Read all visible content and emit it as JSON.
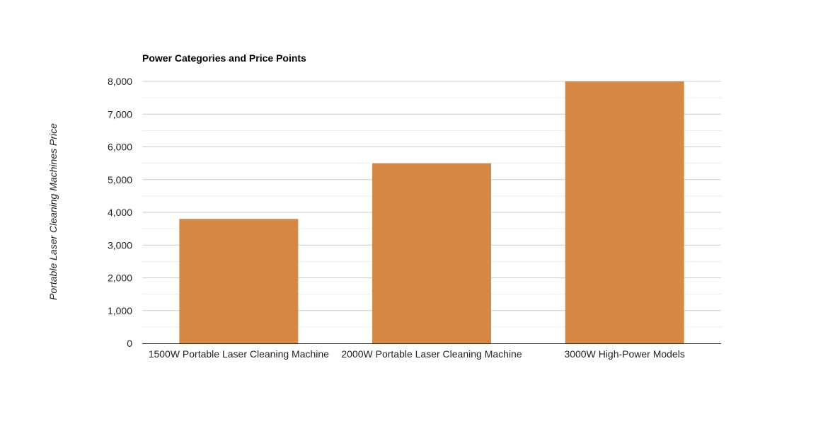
{
  "chart_data": {
    "type": "bar",
    "title": "Power Categories and Price Points",
    "xlabel": "",
    "ylabel": "Portable Laser Cleaning Machines Price",
    "categories": [
      "1500W Portable Laser Cleaning Machine",
      "2000W Portable Laser Cleaning Machine",
      "3000W High-Power Models"
    ],
    "values": [
      3800,
      5500,
      8000
    ],
    "ylim": [
      0,
      8000
    ],
    "yticks": [
      0,
      1000,
      2000,
      3000,
      4000,
      5000,
      6000,
      7000,
      8000
    ],
    "ytick_labels": [
      "0",
      "1,000",
      "2,000",
      "3,000",
      "4,000",
      "5,000",
      "6,000",
      "7,000",
      "8,000"
    ],
    "grid": true,
    "legend": "none",
    "bar_color": "#d58945"
  }
}
